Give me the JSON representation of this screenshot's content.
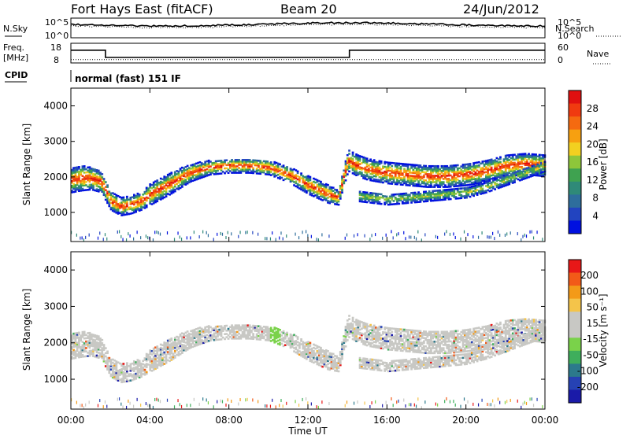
{
  "header": {
    "station": "Fort Hays East (fitACF)",
    "beam": "Beam 20",
    "date": "24/Jun/2012"
  },
  "side_labels": {
    "nsky": "N.Sky",
    "nsearch": "N.Search",
    "freq_line1": "Freq.",
    "freq_line2": "[MHz]",
    "nave": "Nave",
    "cpid": "CPID",
    "cpid_value": "normal (fast) 151 IF"
  },
  "noise_axis": {
    "top_mant": "10",
    "top_exp": "^5",
    "bottom_mant": "10",
    "bottom_exp": "^0"
  },
  "freq_axis": {
    "left_ticks": [
      "18",
      "8"
    ],
    "right_ticks": [
      "60",
      "0"
    ]
  },
  "colors": {
    "power_scale": [
      "#0010e0",
      "#2244c0",
      "#2e6e9c",
      "#2f8a78",
      "#3fa250",
      "#8ec63a",
      "#f2d020",
      "#f7a010",
      "#f56a10",
      "#f03a10",
      "#e01010"
    ],
    "velocity_scale": [
      "#e81818",
      "#f25a18",
      "#f39a18",
      "#f4c44a",
      "#c8c8c4",
      "#c8c8c4",
      "#7ad24a",
      "#3fae5c",
      "#2c7a8c",
      "#2642b4",
      "#1a1aa8"
    ],
    "ground_scatter": "#c8c8c4"
  },
  "chart_data": [
    {
      "type": "heatmap",
      "name": "power",
      "ylabel": "Slant Range [km]",
      "y_ticks": [
        "1000",
        "2000",
        "3000",
        "4000"
      ],
      "ylim": [
        180,
        4500
      ],
      "colorbar_label": "Power [dB]",
      "colorbar_ticks": [
        "4",
        "8",
        "12",
        "16",
        "20",
        "24",
        "28"
      ],
      "colorbar_range": [
        0,
        32
      ],
      "x_ticks": [
        "00:00",
        "04:00",
        "08:00",
        "12:00",
        "16:00",
        "20:00",
        "00:00"
      ],
      "xlim_hours": [
        0,
        24
      ],
      "scatter_bands_km": [
        {
          "t": [
            0.0,
            0.5,
            1.0,
            1.5,
            2.0,
            2.5,
            3.0,
            3.5,
            4.0,
            5.0,
            6.0,
            7.0,
            8.0,
            9.0,
            10.0,
            11.0,
            12.0,
            13.0,
            13.5,
            14.0,
            14.5,
            15.0,
            16.0,
            17.0,
            18.0,
            19.0,
            20.0,
            21.0,
            22.0,
            23.0,
            24.0
          ],
          "center": [
            1900,
            1950,
            1950,
            1850,
            1300,
            1150,
            1200,
            1300,
            1500,
            1800,
            2100,
            2250,
            2300,
            2300,
            2250,
            2050,
            1750,
            1500,
            1400,
            2450,
            2300,
            2200,
            2100,
            2050,
            2000,
            2000,
            2050,
            2150,
            2300,
            2350,
            2300
          ],
          "halfwidth": [
            350,
            350,
            320,
            300,
            250,
            250,
            250,
            250,
            300,
            300,
            250,
            200,
            200,
            200,
            200,
            220,
            250,
            250,
            200,
            300,
            300,
            300,
            300,
            300,
            300,
            300,
            300,
            300,
            300,
            300,
            300
          ]
        },
        {
          "t": [
            14.5,
            16.0,
            17.0,
            18.0,
            19.0,
            20.0,
            21.0,
            22.0,
            23.0,
            24.0
          ],
          "center": [
            1450,
            1350,
            1400,
            1450,
            1500,
            1550,
            1700,
            1900,
            2100,
            2300
          ],
          "halfwidth": [
            150,
            150,
            150,
            150,
            150,
            150,
            150,
            150,
            150,
            150
          ]
        }
      ]
    },
    {
      "type": "heatmap",
      "name": "velocity",
      "ylabel": "Slant Range [km]",
      "y_ticks": [
        "1000",
        "2000",
        "3000",
        "4000"
      ],
      "ylim": [
        180,
        4500
      ],
      "colorbar_label": "Velocity [m s⁻¹]",
      "colorbar_ticks": [
        "200",
        "100",
        "50",
        "15",
        "-15",
        "-50",
        "-100",
        "-200"
      ],
      "colorbar_range": [
        -250,
        250
      ],
      "x_ticks": [
        "00:00",
        "04:00",
        "08:00",
        "12:00",
        "16:00",
        "20:00",
        "00:00"
      ],
      "xlabel": "Time UT",
      "xlim_hours": [
        0,
        24
      ]
    },
    {
      "type": "line",
      "name": "frequency",
      "x_hours": [
        0,
        1.75,
        1.75,
        14.1,
        14.1,
        24
      ],
      "freq_mhz": [
        14.5,
        14.5,
        10.8,
        10.8,
        14.5,
        14.5
      ],
      "nave": [
        10,
        10,
        10,
        10,
        10,
        10
      ]
    }
  ]
}
